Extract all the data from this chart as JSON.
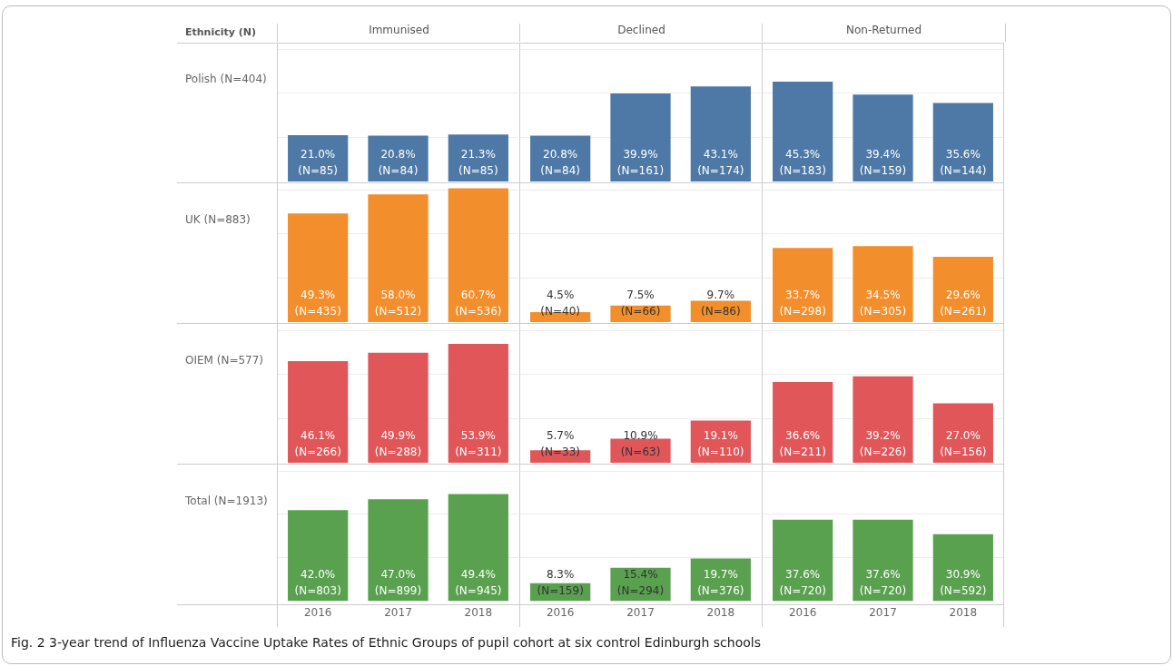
{
  "chart_data": [
    {
      "type": "bar",
      "title": "Immunised",
      "ylabel": "Polish (N=404)",
      "categories": [
        "2016",
        "2017",
        "2018"
      ],
      "values": [
        21.0,
        20.8,
        21.3
      ],
      "value_labels": [
        "21.0%\n(N=85)",
        "20.8%\n(N=84)",
        "21.3%\n(N=85)"
      ],
      "color": "#4e79a7",
      "ylim": [
        0,
        63
      ],
      "yticks": [
        {
          "value": 20,
          "label": null
        },
        {
          "value": 40,
          "label": null
        },
        {
          "value": 60,
          "label": null
        }
      ],
      "grid": "y",
      "tick_labels": false,
      "annotations": [
        "Ethnicity (N)",
        "Fig. 2 3-year trend of Influenza Vaccine Uptake Rates of Ethnic Groups of pupil cohort at six control Edinburgh schools"
      ]
    },
    {
      "type": "bar",
      "title": "Declined",
      "categories": [
        "2016",
        "2017",
        "2018"
      ],
      "values": [
        20.8,
        39.9,
        43.1
      ],
      "value_labels": [
        "20.8%\n(N=84)",
        "39.9%\n(N=161)",
        "43.1%\n(N=174)"
      ],
      "color": "#4e79a7",
      "ylim": [
        0,
        63
      ],
      "yticks": [
        {
          "value": 20,
          "label": null
        },
        {
          "value": 40,
          "label": null
        },
        {
          "value": 60,
          "label": null
        }
      ],
      "grid": "y",
      "tick_labels": false
    },
    {
      "type": "bar",
      "title": "Non-Returned",
      "categories": [
        "2016",
        "2017",
        "2018"
      ],
      "values": [
        45.3,
        39.4,
        35.6
      ],
      "value_labels": [
        "45.3%\n(N=183)",
        "39.4%\n(N=159)",
        "35.6%\n(N=144)"
      ],
      "color": "#4e79a7",
      "ylim": [
        0,
        63
      ],
      "yticks": [
        {
          "value": 20,
          "label": null
        },
        {
          "value": 40,
          "label": null
        },
        {
          "value": 60,
          "label": null
        }
      ],
      "grid": "y",
      "tick_labels": false
    },
    {
      "type": "bar",
      "ylabel": "UK (N=883)",
      "categories": [
        "2016",
        "2017",
        "2018"
      ],
      "values": [
        49.3,
        58.0,
        60.7
      ],
      "value_labels": [
        "49.3%\n(N=435)",
        "58.0%\n(N=512)",
        "60.7%\n(N=536)"
      ],
      "color": "#f28e2b",
      "ylim": [
        0,
        63
      ],
      "yticks": [
        {
          "value": 20,
          "label": null
        },
        {
          "value": 40,
          "label": null
        },
        {
          "value": 60,
          "label": null
        }
      ],
      "grid": "y",
      "tick_labels": false
    },
    {
      "type": "bar",
      "categories": [
        "2016",
        "2017",
        "2018"
      ],
      "values": [
        4.5,
        7.5,
        9.7
      ],
      "value_labels": [
        "4.5%\n(N=40)",
        "7.5%\n(N=66)",
        "9.7%\n(N=86)"
      ],
      "color": "#f28e2b",
      "ylim": [
        0,
        63
      ],
      "yticks": [
        {
          "value": 20,
          "label": null
        },
        {
          "value": 40,
          "label": null
        },
        {
          "value": 60,
          "label": null
        }
      ],
      "grid": "y",
      "tick_labels": false
    },
    {
      "type": "bar",
      "categories": [
        "2016",
        "2017",
        "2018"
      ],
      "values": [
        33.7,
        34.5,
        29.6
      ],
      "value_labels": [
        "33.7%\n(N=298)",
        "34.5%\n(N=305)",
        "29.6%\n(N=261)"
      ],
      "color": "#f28e2b",
      "ylim": [
        0,
        63
      ],
      "yticks": [
        {
          "value": 20,
          "label": null
        },
        {
          "value": 40,
          "label": null
        },
        {
          "value": 60,
          "label": null
        }
      ],
      "grid": "y",
      "tick_labels": false
    },
    {
      "type": "bar",
      "ylabel": "OIEM (N=577)",
      "categories": [
        "2016",
        "2017",
        "2018"
      ],
      "values": [
        46.1,
        49.9,
        53.9
      ],
      "value_labels": [
        "46.1%\n(N=266)",
        "49.9%\n(N=288)",
        "53.9%\n(N=311)"
      ],
      "color": "#e15759",
      "ylim": [
        0,
        63
      ],
      "yticks": [
        {
          "value": 20,
          "label": null
        },
        {
          "value": 40,
          "label": null
        },
        {
          "value": 60,
          "label": null
        }
      ],
      "grid": "y",
      "tick_labels": false
    },
    {
      "type": "bar",
      "categories": [
        "2016",
        "2017",
        "2018"
      ],
      "values": [
        5.7,
        10.9,
        19.1
      ],
      "value_labels": [
        "5.7%\n(N=33)",
        "10.9%\n(N=63)",
        "19.1%\n(N=110)"
      ],
      "color": "#e15759",
      "ylim": [
        0,
        63
      ],
      "yticks": [
        {
          "value": 20,
          "label": null
        },
        {
          "value": 40,
          "label": null
        },
        {
          "value": 60,
          "label": null
        }
      ],
      "grid": "y",
      "tick_labels": false
    },
    {
      "type": "bar",
      "categories": [
        "2016",
        "2017",
        "2018"
      ],
      "values": [
        36.6,
        39.2,
        27.0
      ],
      "value_labels": [
        "36.6%\n(N=211)",
        "39.2%\n(N=226)",
        "27.0%\n(N=156)"
      ],
      "color": "#e15759",
      "ylim": [
        0,
        63
      ],
      "yticks": [
        {
          "value": 20,
          "label": null
        },
        {
          "value": 40,
          "label": null
        },
        {
          "value": 60,
          "label": null
        }
      ],
      "grid": "y",
      "tick_labels": false
    },
    {
      "type": "bar",
      "ylabel": "Total (N=1913)",
      "categories": [
        "2016",
        "2017",
        "2018"
      ],
      "values": [
        42.0,
        47.0,
        49.4
      ],
      "value_labels": [
        "42.0%\n(N=803)",
        "47.0%\n(N=899)",
        "49.4%\n(N=945)"
      ],
      "color": "#59a14f",
      "ylim": [
        0,
        63
      ],
      "yticks": [
        {
          "value": 20,
          "label": null
        },
        {
          "value": 40,
          "label": null
        },
        {
          "value": 60,
          "label": null
        }
      ],
      "grid": "y",
      "tick_labels": "x"
    },
    {
      "type": "bar",
      "categories": [
        "2016",
        "2017",
        "2018"
      ],
      "values": [
        8.3,
        15.4,
        19.7
      ],
      "value_labels": [
        "8.3%\n(N=159)",
        "15.4%\n(N=294)",
        "19.7%\n(N=376)"
      ],
      "color": "#59a14f",
      "ylim": [
        0,
        63
      ],
      "yticks": [
        {
          "value": 20,
          "label": null
        },
        {
          "value": 40,
          "label": null
        },
        {
          "value": 60,
          "label": null
        }
      ],
      "grid": "y",
      "tick_labels": "x"
    },
    {
      "type": "bar",
      "categories": [
        "2016",
        "2017",
        "2018"
      ],
      "values": [
        37.6,
        37.6,
        30.9
      ],
      "value_labels": [
        "37.6%\n(N=720)",
        "37.6%\n(N=720)",
        "30.9%\n(N=592)"
      ],
      "color": "#59a14f",
      "ylim": [
        0,
        63
      ],
      "yticks": [
        {
          "value": 20,
          "label": null
        },
        {
          "value": 40,
          "label": null
        },
        {
          "value": 60,
          "label": null
        }
      ],
      "grid": "y",
      "tick_labels": "x"
    }
  ]
}
